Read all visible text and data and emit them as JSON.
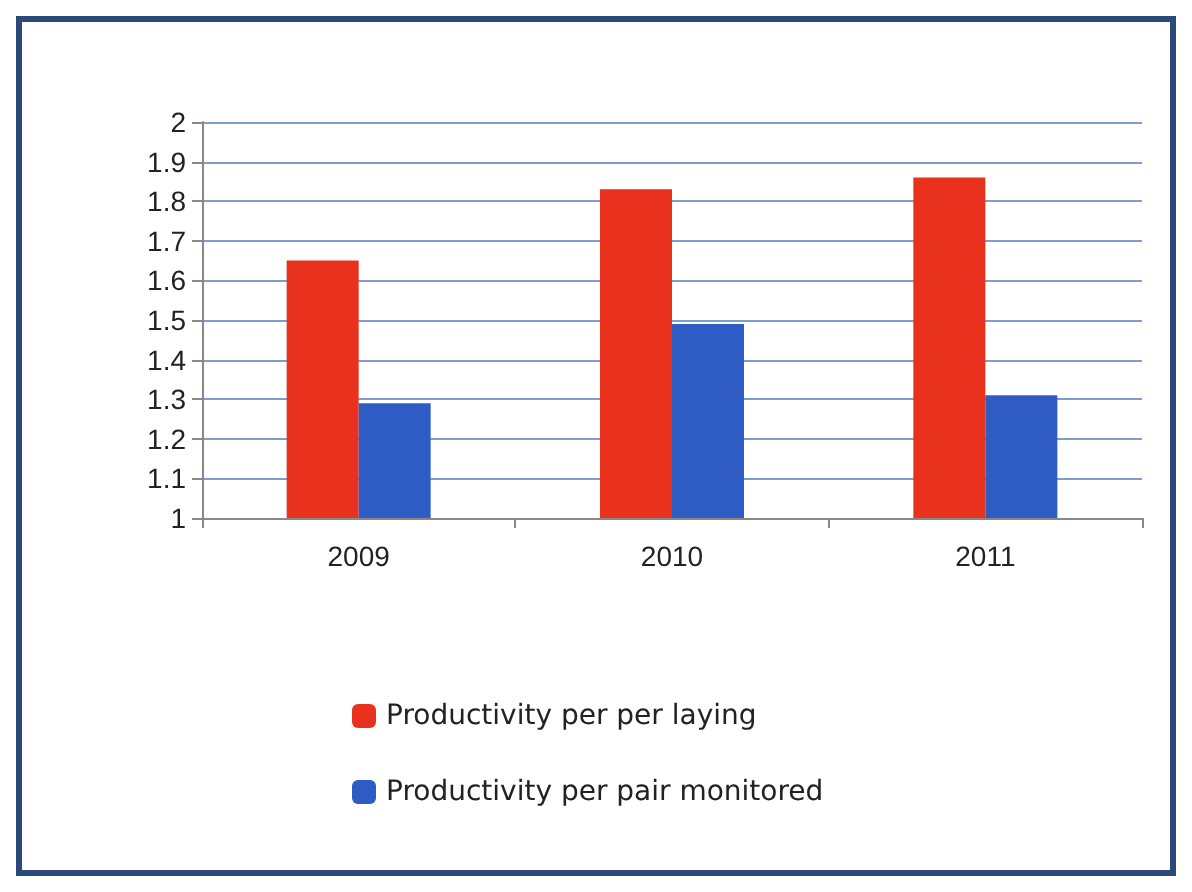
{
  "chart_data": {
    "type": "bar",
    "categories": [
      "2009",
      "2010",
      "2011"
    ],
    "series": [
      {
        "name": "Productivity per per laying",
        "color": "#e8321e",
        "values": [
          1.65,
          1.83,
          1.86
        ]
      },
      {
        "name": "Productivity per pair monitored",
        "color": "#2f5cc4",
        "values": [
          1.29,
          1.49,
          1.31
        ]
      }
    ],
    "ylim": [
      1,
      2
    ],
    "yticks": [
      1,
      1.1,
      1.2,
      1.3,
      1.4,
      1.5,
      1.6,
      1.7,
      1.8,
      1.9,
      2
    ],
    "grid": "y",
    "legend": "bottom"
  }
}
